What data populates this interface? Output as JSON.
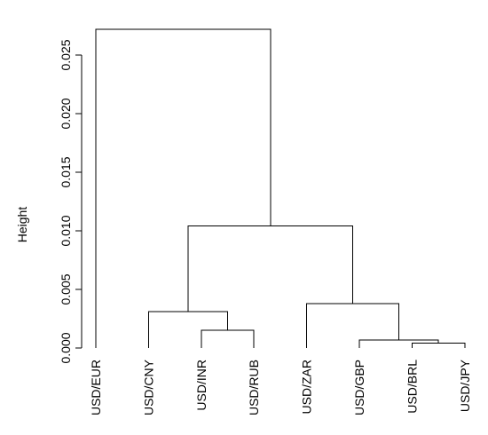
{
  "chart_data": {
    "type": "dendrogram",
    "ylabel": "Height",
    "ylim": [
      0,
      0.027
    ],
    "y_ticks": [
      {
        "value": 0.0,
        "label": "0.000"
      },
      {
        "value": 0.005,
        "label": "0.005"
      },
      {
        "value": 0.01,
        "label": "0.010"
      },
      {
        "value": 0.015,
        "label": "0.015"
      },
      {
        "value": 0.02,
        "label": "0.020"
      },
      {
        "value": 0.025,
        "label": "0.025"
      }
    ],
    "leaves": [
      "USD/EUR",
      "USD/CNY",
      "USD/INR",
      "USD/RUB",
      "USD/ZAR",
      "USD/GBP",
      "USD/BRL",
      "USD/JPY"
    ],
    "merges": [
      {
        "id": "m1",
        "left": "USD/BRL",
        "right": "USD/JPY",
        "height": 0.0004
      },
      {
        "id": "m2",
        "left": "USD/GBP",
        "right": "m1",
        "height": 0.0007
      },
      {
        "id": "m3",
        "left": "USD/INR",
        "right": "USD/RUB",
        "height": 0.0015
      },
      {
        "id": "m4",
        "left": "USD/CNY",
        "right": "m3",
        "height": 0.0031
      },
      {
        "id": "m5",
        "left": "USD/ZAR",
        "right": "m2",
        "height": 0.0038
      },
      {
        "id": "m6",
        "left": "m4",
        "right": "m5",
        "height": 0.0104
      },
      {
        "id": "m7",
        "left": "USD/EUR",
        "right": "m6",
        "height": 0.0272
      }
    ]
  }
}
